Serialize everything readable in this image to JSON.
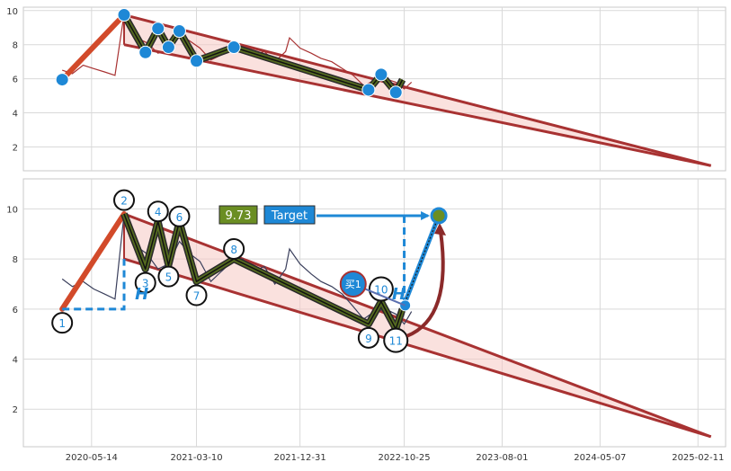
{
  "chart_data": [
    {
      "type": "line",
      "panel": "top",
      "title": "",
      "xlabel": "",
      "ylabel": "",
      "xlim": [
        "2019-11-01",
        "2025-05-01"
      ],
      "ylim": [
        0.6,
        10.2
      ],
      "y_ticks": [
        2,
        4,
        6,
        8,
        10
      ],
      "grid": true,
      "colors": {
        "price": "#a83232",
        "wave_fill": "#556b1f",
        "wave_line": "#1a1a1a",
        "pivot": "#1e88d6",
        "channel": "#a83232",
        "channel_fill": "#f5c9c3",
        "impulse": "#d24a2a"
      },
      "series": [
        {
          "kind": "price",
          "x": [
            "2020-02-20",
            "2020-03-20",
            "2020-04-20",
            "2020-05-20",
            "2020-06-20",
            "2020-07-20",
            "2020-08-15",
            "2020-09-01",
            "2020-09-20",
            "2020-10-20",
            "2020-11-20",
            "2020-12-20",
            "2021-01-20",
            "2021-02-20",
            "2021-03-20",
            "2021-04-20",
            "2021-05-20",
            "2021-06-20",
            "2021-07-20",
            "2021-08-20",
            "2021-09-20",
            "2021-10-20",
            "2021-11-20",
            "2021-12-01",
            "2021-12-31",
            "2022-02-01",
            "2022-03-01",
            "2022-04-01",
            "2022-05-01",
            "2022-06-01",
            "2022-07-01",
            "2022-08-01",
            "2022-09-01",
            "2022-10-01",
            "2022-10-25",
            "2022-11-15"
          ],
          "y": [
            6.5,
            6.3,
            6.8,
            6.6,
            6.4,
            6.2,
            9.8,
            8.8,
            8.4,
            8.1,
            7.5,
            7.7,
            8.6,
            8.2,
            7.8,
            7.1,
            7.4,
            7.8,
            7.9,
            7.4,
            7.6,
            7.0,
            7.6,
            8.4,
            7.8,
            7.5,
            7.2,
            7.0,
            6.6,
            6.2,
            5.6,
            5.9,
            6.0,
            5.8,
            5.4,
            5.8
          ]
        },
        {
          "kind": "waves",
          "x": [
            "2020-02-20",
            "2020-08-15",
            "2020-10-15",
            "2020-11-20",
            "2020-12-20",
            "2021-01-20",
            "2021-03-10",
            "2021-06-25",
            "2022-07-15",
            "2022-08-20",
            "2022-10-01",
            "2022-10-20"
          ],
          "y": [
            5.95,
            9.75,
            7.55,
            8.95,
            7.85,
            8.8,
            7.05,
            7.85,
            5.35,
            6.25,
            5.2,
            5.95
          ]
        }
      ],
      "pivots": {
        "x": [
          "2020-02-20",
          "2020-08-15",
          "2020-10-15",
          "2020-11-20",
          "2020-12-20",
          "2021-01-20",
          "2021-03-10",
          "2021-06-25",
          "2022-07-15",
          "2022-08-20",
          "2022-10-01"
        ],
        "y": [
          5.95,
          9.75,
          7.55,
          8.95,
          7.85,
          8.8,
          7.05,
          7.85,
          5.35,
          6.25,
          5.2
        ]
      },
      "channel": {
        "upper": {
          "x": [
            "2020-08-15",
            "2025-03-20"
          ],
          "y": [
            9.75,
            0.9
          ]
        },
        "lower": {
          "x": [
            "2020-08-15",
            "2025-03-20"
          ],
          "y": [
            8.0,
            0.9
          ]
        }
      }
    },
    {
      "type": "line",
      "panel": "bottom",
      "title": "",
      "xlabel": "",
      "ylabel": "",
      "xlim": [
        "2019-11-01",
        "2025-05-01"
      ],
      "ylim": [
        0.5,
        11.2
      ],
      "y_ticks": [
        2,
        4,
        6,
        8,
        10
      ],
      "x_tick_labels": [
        "2020-05-14",
        "2021-03-10",
        "2021-12-31",
        "2022-10-25",
        "2023-08-01",
        "2024-05-07",
        "2025-02-11"
      ],
      "grid": true,
      "colors": {
        "price": "#3a3f5c",
        "wave_fill": "#556b1f",
        "wave_line": "#1a1a1a",
        "channel": "#a83232",
        "channel_fill": "#f5c9c3",
        "impulse": "#d24a2a",
        "dash": "#1e88d6",
        "target_box": "#1e88d6",
        "value_box": "#6b8e23",
        "label_text": "#1e88d6"
      },
      "series": [
        {
          "kind": "price",
          "x": [
            "2020-02-20",
            "2020-03-20",
            "2020-04-20",
            "2020-05-20",
            "2020-06-20",
            "2020-07-20",
            "2020-08-15",
            "2020-09-01",
            "2020-09-20",
            "2020-10-20",
            "2020-11-20",
            "2020-12-20",
            "2021-01-20",
            "2021-02-20",
            "2021-03-20",
            "2021-04-20",
            "2021-05-20",
            "2021-06-20",
            "2021-07-20",
            "2021-08-20",
            "2021-09-20",
            "2021-10-20",
            "2021-11-20",
            "2021-12-01",
            "2021-12-31",
            "2022-02-01",
            "2022-03-01",
            "2022-04-01",
            "2022-05-01",
            "2022-06-01",
            "2022-07-01",
            "2022-08-01",
            "2022-09-01",
            "2022-10-01",
            "2022-10-25",
            "2022-11-15"
          ],
          "y": [
            7.2,
            6.9,
            7.1,
            6.8,
            6.6,
            6.4,
            9.8,
            8.9,
            8.5,
            8.2,
            7.6,
            7.8,
            8.7,
            8.2,
            7.9,
            7.1,
            7.5,
            7.9,
            8.0,
            7.5,
            7.7,
            7.0,
            7.6,
            8.4,
            7.8,
            7.4,
            7.1,
            6.9,
            6.6,
            6.1,
            5.6,
            5.9,
            6.0,
            5.8,
            5.4,
            5.9
          ]
        },
        {
          "kind": "waves",
          "x": [
            "2020-02-20",
            "2020-08-15",
            "2020-10-15",
            "2020-11-20",
            "2020-12-20",
            "2021-01-20",
            "2021-03-10",
            "2021-06-25",
            "2022-07-15",
            "2022-08-20",
            "2022-10-01",
            "2022-10-20"
          ],
          "y": [
            6.0,
            9.8,
            7.6,
            9.5,
            7.75,
            9.5,
            7.1,
            8.0,
            5.4,
            6.3,
            5.2,
            6.0
          ]
        }
      ],
      "wave_labels": [
        {
          "label": "1",
          "x": "2020-02-20",
          "y": 5.45
        },
        {
          "label": "2",
          "x": "2020-08-15",
          "y": 10.35
        },
        {
          "label": "3",
          "x": "2020-10-15",
          "y": 7.05
        },
        {
          "label": "4",
          "x": "2020-11-20",
          "y": 9.9
        },
        {
          "label": "5",
          "x": "2020-12-20",
          "y": 7.3
        },
        {
          "label": "6",
          "x": "2021-01-20",
          "y": 9.7
        },
        {
          "label": "7",
          "x": "2021-03-10",
          "y": 6.55
        },
        {
          "label": "8",
          "x": "2021-06-25",
          "y": 8.4
        },
        {
          "label": "9",
          "x": "2022-07-15",
          "y": 4.85
        },
        {
          "label": "10",
          "x": "2022-08-20",
          "y": 6.8
        },
        {
          "label": "11",
          "x": "2022-10-01",
          "y": 4.75
        }
      ],
      "channel": {
        "upper": {
          "x": [
            "2020-08-15",
            "2025-03-20"
          ],
          "y": [
            9.8,
            0.9
          ]
        },
        "lower": {
          "x": [
            "2020-08-15",
            "2025-03-20"
          ],
          "y": [
            8.0,
            0.9
          ]
        }
      },
      "buy_marker": {
        "label": "买1",
        "x": "2022-06-01",
        "y": 7.0
      },
      "target": {
        "label": "Target",
        "value_label": "9.73",
        "value": 9.73,
        "x": "2023-02-01"
      },
      "height_labels": [
        {
          "label": "H",
          "x": "2020-09-15",
          "y": 6.6
        },
        {
          "label": "H",
          "x": "2022-09-20",
          "y": 6.6
        }
      ]
    }
  ]
}
